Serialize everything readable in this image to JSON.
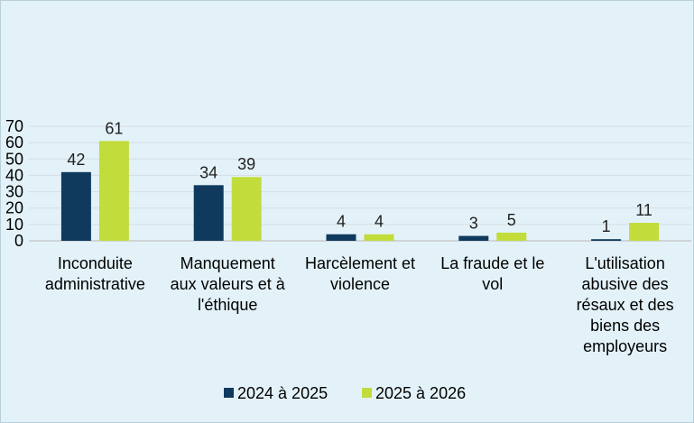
{
  "chart_data": {
    "type": "bar",
    "categories": [
      [
        "Inconduite",
        "administrative"
      ],
      [
        "Manquement",
        "aux valeurs et à",
        "l'éthique"
      ],
      [
        "Harcèlement et",
        "violence"
      ],
      [
        "La fraude et le",
        "vol"
      ],
      [
        "L'utilisation",
        "abusive des",
        "résaux et des",
        "biens des",
        "employeurs"
      ]
    ],
    "series": [
      {
        "name": "2024 à 2025",
        "color": "#0f3a5e",
        "values": [
          42,
          34,
          4,
          3,
          1
        ]
      },
      {
        "name": "2025 à 2026",
        "color": "#c2dc3c",
        "values": [
          61,
          39,
          4,
          5,
          11
        ]
      }
    ],
    "yticks": [
      0,
      10,
      20,
      30,
      40,
      50,
      60,
      70
    ],
    "ylim": [
      0,
      70
    ],
    "grid": true,
    "legend": "bottom"
  }
}
